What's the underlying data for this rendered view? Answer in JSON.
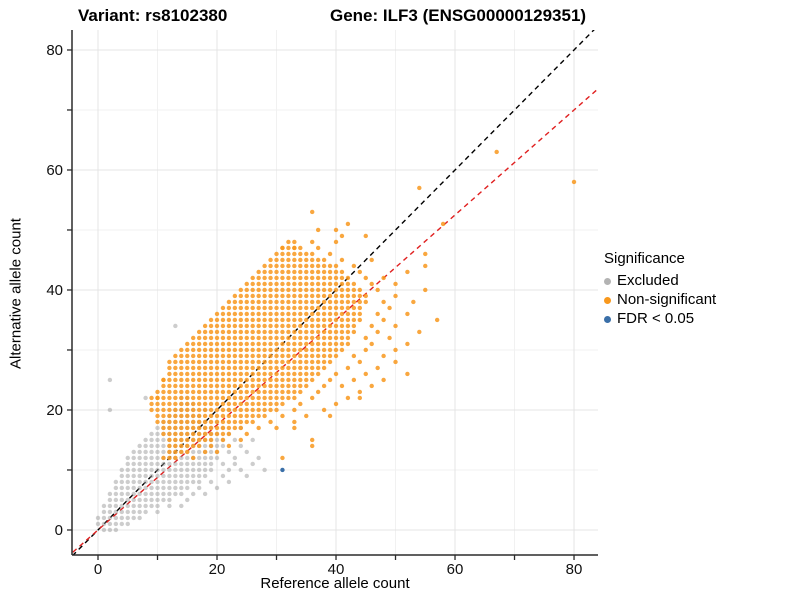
{
  "titles": {
    "variant": "Variant: rs8102380",
    "gene": "Gene: ILF3 (ENSG00000129351)"
  },
  "chart_data": {
    "type": "scatter",
    "title": "Variant: rs8102380 / Gene: ILF3 (ENSG00000129351)",
    "xlabel": "Reference allele count",
    "ylabel": "Alternative allele count",
    "xlim": [
      -4.37,
      84.03
    ],
    "ylim": [
      -4.17,
      83.33
    ],
    "x_ticks": [
      0,
      20,
      40,
      60,
      80
    ],
    "y_ticks": [
      0,
      20,
      40,
      60,
      80
    ],
    "minor_ticks": [
      10,
      30,
      50,
      70
    ],
    "grid": true,
    "grid_major_color": "#e4e4e4",
    "grid_minor_color": "#f1f1f1",
    "legend": {
      "title": "Significance",
      "position": "right",
      "items": [
        {
          "label": "Excluded",
          "color": "#b3b3b3"
        },
        {
          "label": "Non-significant",
          "color": "#f8981d"
        },
        {
          "label": "FDR < 0.05",
          "color": "#3a6fa8"
        }
      ]
    },
    "lines": [
      {
        "name": "identity",
        "slope": 1.0,
        "intercept": 0,
        "color": "#000000",
        "style": "dashed"
      },
      {
        "name": "fit",
        "slope": 0.875,
        "intercept": 0,
        "color": "#e02020",
        "style": "dashed"
      }
    ],
    "row_encoding": "rows entries are [y, xStart, xEnd] expanded to integer (x,y) points; extra entries are explicit [x,y] points",
    "series": [
      {
        "name": "Excluded",
        "color": "#9c9c9c",
        "opacity": 0.5,
        "rows": [
          [
            0,
            1,
            3
          ],
          [
            1,
            0,
            5
          ],
          [
            2,
            0,
            7
          ],
          [
            3,
            1,
            8
          ],
          [
            4,
            1,
            10
          ],
          [
            5,
            2,
            12
          ],
          [
            6,
            2,
            14
          ],
          [
            7,
            3,
            15
          ],
          [
            8,
            3,
            17
          ],
          [
            9,
            4,
            18
          ],
          [
            10,
            4,
            19
          ],
          [
            11,
            5,
            19
          ],
          [
            12,
            5,
            20
          ],
          [
            13,
            6,
            20
          ],
          [
            14,
            7,
            21
          ],
          [
            15,
            8,
            21
          ],
          [
            16,
            9,
            20
          ],
          [
            17,
            10,
            19
          ],
          [
            18,
            11,
            18
          ],
          [
            19,
            12,
            17
          ],
          [
            20,
            13,
            16
          ],
          [
            21,
            14,
            16
          ],
          [
            22,
            14,
            15
          ]
        ],
        "extra": [
          [
            10,
            3
          ],
          [
            12,
            4
          ],
          [
            14,
            4
          ],
          [
            15,
            5
          ],
          [
            16,
            6
          ],
          [
            18,
            6
          ],
          [
            17,
            7
          ],
          [
            20,
            7
          ],
          [
            19,
            8
          ],
          [
            22,
            8
          ],
          [
            21,
            9
          ],
          [
            25,
            9
          ],
          [
            22,
            10
          ],
          [
            24,
            10
          ],
          [
            28,
            10
          ],
          [
            21,
            11
          ],
          [
            23,
            11
          ],
          [
            26,
            11
          ],
          [
            23,
            12
          ],
          [
            27,
            12
          ],
          [
            22,
            13
          ],
          [
            25,
            13
          ],
          [
            24,
            14
          ],
          [
            23,
            15
          ],
          [
            26,
            15
          ],
          [
            22,
            16
          ],
          [
            21,
            17
          ],
          [
            24,
            17
          ],
          [
            20,
            18
          ],
          [
            19,
            19
          ],
          [
            2,
            20
          ],
          [
            18,
            20
          ],
          [
            22,
            20
          ],
          [
            8,
            22
          ],
          [
            2,
            25
          ],
          [
            13,
            34
          ]
        ]
      },
      {
        "name": "Non-significant",
        "color": "#f8981d",
        "opacity": 0.85,
        "rows": [
          [
            12,
            11,
            13
          ],
          [
            13,
            12,
            15
          ],
          [
            14,
            12,
            17
          ],
          [
            15,
            12,
            19
          ],
          [
            16,
            11,
            22
          ],
          [
            17,
            11,
            24
          ],
          [
            18,
            10,
            26
          ],
          [
            19,
            10,
            28
          ],
          [
            20,
            9,
            30
          ],
          [
            21,
            9,
            31
          ],
          [
            22,
            9,
            33
          ],
          [
            23,
            10,
            34
          ],
          [
            24,
            11,
            35
          ],
          [
            25,
            11,
            36
          ],
          [
            26,
            12,
            37
          ],
          [
            27,
            12,
            38
          ],
          [
            28,
            13,
            39
          ],
          [
            29,
            13,
            40
          ],
          [
            30,
            14,
            41
          ],
          [
            31,
            15,
            42
          ],
          [
            32,
            16,
            42
          ],
          [
            33,
            17,
            43
          ],
          [
            34,
            18,
            43
          ],
          [
            35,
            19,
            44
          ],
          [
            36,
            20,
            44
          ],
          [
            37,
            21,
            44
          ],
          [
            38,
            22,
            45
          ],
          [
            39,
            23,
            45
          ],
          [
            40,
            24,
            44
          ],
          [
            41,
            25,
            43
          ],
          [
            42,
            26,
            42
          ],
          [
            43,
            27,
            41
          ],
          [
            44,
            28,
            40
          ],
          [
            45,
            29,
            38
          ],
          [
            46,
            30,
            36
          ],
          [
            47,
            31,
            34
          ],
          [
            48,
            32,
            33
          ]
        ],
        "extra": [
          [
            16,
            12
          ],
          [
            18,
            13
          ],
          [
            20,
            13
          ],
          [
            19,
            14
          ],
          [
            22,
            14
          ],
          [
            21,
            15
          ],
          [
            24,
            15
          ],
          [
            25,
            16
          ],
          [
            27,
            17
          ],
          [
            30,
            17
          ],
          [
            29,
            18
          ],
          [
            33,
            18
          ],
          [
            31,
            19
          ],
          [
            35,
            19
          ],
          [
            33,
            20
          ],
          [
            38,
            20
          ],
          [
            34,
            21
          ],
          [
            40,
            21
          ],
          [
            36,
            22
          ],
          [
            42,
            22
          ],
          [
            37,
            23
          ],
          [
            44,
            23
          ],
          [
            38,
            24
          ],
          [
            41,
            24
          ],
          [
            46,
            24
          ],
          [
            39,
            25
          ],
          [
            43,
            25
          ],
          [
            48,
            25
          ],
          [
            40,
            26
          ],
          [
            45,
            26
          ],
          [
            52,
            26
          ],
          [
            42,
            27
          ],
          [
            47,
            27
          ],
          [
            44,
            28
          ],
          [
            50,
            28
          ],
          [
            43,
            29
          ],
          [
            48,
            29
          ],
          [
            45,
            30
          ],
          [
            50,
            30
          ],
          [
            46,
            31
          ],
          [
            52,
            31
          ],
          [
            45,
            32
          ],
          [
            49,
            32
          ],
          [
            47,
            33
          ],
          [
            54,
            33
          ],
          [
            46,
            34
          ],
          [
            50,
            34
          ],
          [
            48,
            35
          ],
          [
            57,
            35
          ],
          [
            47,
            36
          ],
          [
            52,
            36
          ],
          [
            49,
            37
          ],
          [
            48,
            38
          ],
          [
            53,
            38
          ],
          [
            50,
            39
          ],
          [
            47,
            40
          ],
          [
            55,
            40
          ],
          [
            46,
            41
          ],
          [
            50,
            41
          ],
          [
            45,
            42
          ],
          [
            48,
            42
          ],
          [
            44,
            43
          ],
          [
            52,
            43
          ],
          [
            43,
            44
          ],
          [
            55,
            44
          ],
          [
            41,
            45
          ],
          [
            46,
            45
          ],
          [
            39,
            46
          ],
          [
            55,
            46
          ],
          [
            31,
            47
          ],
          [
            33,
            47
          ],
          [
            37,
            47
          ],
          [
            36,
            48
          ],
          [
            40,
            48
          ],
          [
            41,
            49
          ],
          [
            45,
            49
          ],
          [
            37,
            50
          ],
          [
            40,
            50
          ],
          [
            42,
            51
          ],
          [
            58,
            51
          ],
          [
            36,
            53
          ],
          [
            54,
            57
          ],
          [
            80,
            58
          ],
          [
            67,
            63
          ],
          [
            33,
            17
          ],
          [
            36,
            14
          ],
          [
            39,
            19
          ],
          [
            44,
            22
          ],
          [
            31,
            12
          ],
          [
            36,
            15
          ],
          [
            11,
            25
          ],
          [
            12,
            28
          ],
          [
            10,
            22
          ]
        ]
      },
      {
        "name": "FDR < 0.05",
        "color": "#3a6fa8",
        "opacity": 1.0,
        "rows": [],
        "extra": [
          [
            31,
            10
          ]
        ]
      }
    ]
  }
}
